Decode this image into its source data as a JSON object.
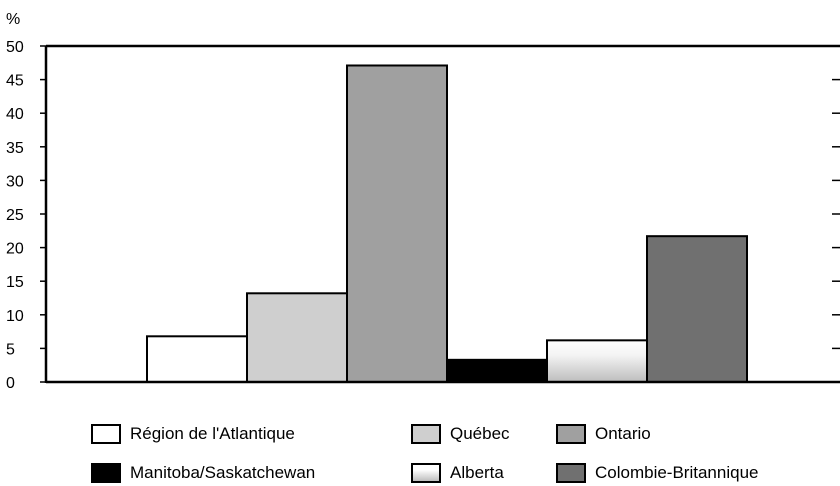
{
  "chart_data": {
    "type": "bar",
    "title": "",
    "xlabel": "",
    "ylabel": "%",
    "ylim": [
      0,
      50
    ],
    "yticks": [
      0,
      5,
      10,
      15,
      20,
      25,
      30,
      35,
      40,
      45,
      50
    ],
    "grid": false,
    "legend_position": "bottom",
    "categories": [
      "Région de l'Atlantique",
      "Québec",
      "Ontario",
      "Manitoba/Saskatchewan",
      "Alberta",
      "Colombie-Britannique"
    ],
    "values": [
      6.8,
      13.2,
      47.1,
      3.3,
      6.2,
      21.7
    ],
    "colors": [
      "#ffffff",
      "#cfcfcf",
      "#a0a0a0",
      "#000000",
      "#ffffff",
      "#707070"
    ]
  }
}
